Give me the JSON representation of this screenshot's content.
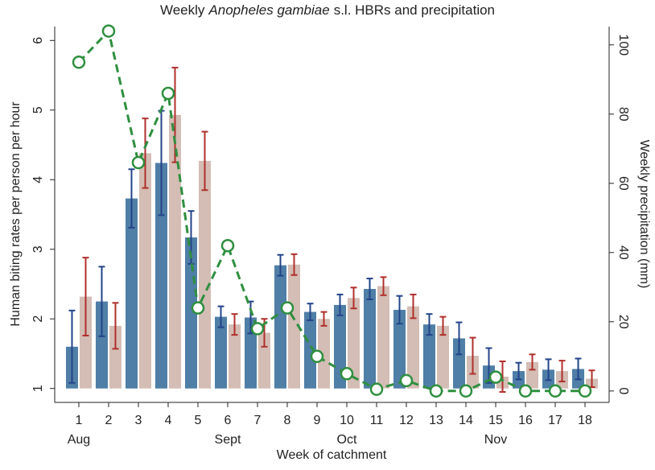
{
  "chart_data": {
    "type": "bar_line",
    "title": {
      "prefix": "Weekly",
      "italic": "Anopheles gambiae",
      "suffix": "s.l. HBRs and precipitation"
    },
    "xlabel": "Week of catchment",
    "ylabel": "Human biting rates per person per hour",
    "y2label": "Weekly precipitation (mm)",
    "x": [
      1,
      2,
      3,
      4,
      5,
      6,
      7,
      8,
      9,
      10,
      11,
      12,
      13,
      14,
      15,
      16,
      17,
      18
    ],
    "xlim": [
      0.19,
      18.81
    ],
    "xticks": [
      1,
      2,
      3,
      4,
      5,
      6,
      7,
      8,
      9,
      10,
      11,
      12,
      13,
      14,
      15,
      16,
      17,
      18
    ],
    "month_labels": [
      {
        "x": 1,
        "label": "Aug"
      },
      {
        "x": 6,
        "label": "Sept"
      },
      {
        "x": 10,
        "label": "Oct"
      },
      {
        "x": 15,
        "label": "Nov"
      }
    ],
    "ylim": [
      0.8,
      6.2
    ],
    "yticks": [
      1,
      2,
      3,
      4,
      5,
      6
    ],
    "y2lim": [
      -3.3,
      105.3
    ],
    "y2ticks": [
      0,
      20,
      40,
      60,
      80,
      100
    ],
    "series": [
      {
        "type": "bar",
        "color": "#4f7ea6",
        "error_color": "#23448a",
        "values": [
          1.6,
          2.25,
          3.73,
          4.24,
          3.17,
          2.03,
          2.02,
          2.77,
          2.1,
          2.2,
          2.43,
          2.13,
          1.92,
          1.72,
          1.33,
          1.25,
          1.27,
          1.28
        ],
        "errors": [
          0.52,
          0.5,
          0.42,
          0.75,
          0.38,
          0.15,
          0.23,
          0.15,
          0.12,
          0.15,
          0.15,
          0.2,
          0.15,
          0.23,
          0.25,
          0.12,
          0.15,
          0.15
        ]
      },
      {
        "type": "bar",
        "color": "#d3bdb4",
        "error_color": "#b0302c",
        "values": [
          2.32,
          1.9,
          4.38,
          4.93,
          4.27,
          1.92,
          1.8,
          2.78,
          2.0,
          2.3,
          2.47,
          2.18,
          1.9,
          1.47,
          1.17,
          1.38,
          1.25,
          1.14
        ],
        "errors": [
          0.56,
          0.33,
          0.5,
          0.68,
          0.42,
          0.15,
          0.2,
          0.15,
          0.1,
          0.15,
          0.13,
          0.17,
          0.13,
          0.26,
          0.22,
          0.11,
          0.15,
          0.12
        ]
      },
      {
        "type": "line",
        "axis": "y2",
        "color": "#2f8f3f",
        "values": [
          95,
          104,
          66,
          86,
          24,
          42,
          18,
          24,
          10,
          5,
          0.5,
          3,
          0,
          0,
          4,
          0,
          0,
          0
        ]
      }
    ]
  }
}
